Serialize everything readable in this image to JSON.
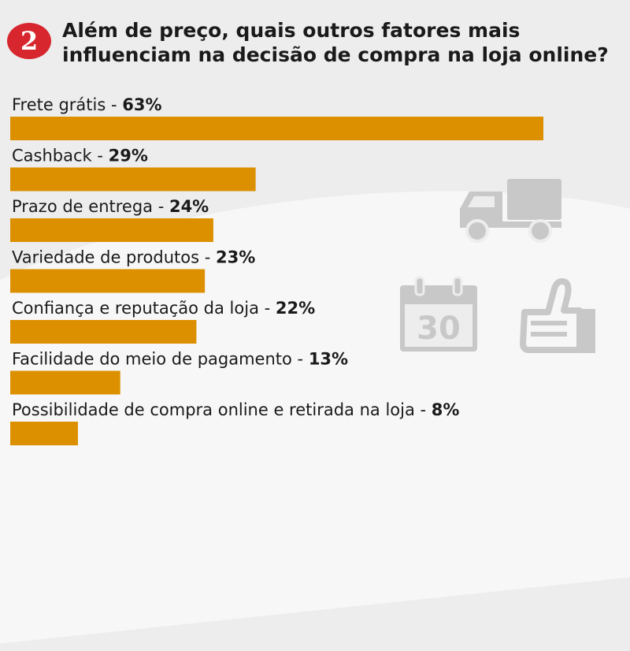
{
  "header": {
    "badge": "2",
    "title_line1": "Além de preço, quais outros fatores mais",
    "title_line2": "influenciam na decisão de compra na loja online?"
  },
  "colors": {
    "bar": "#dc9000",
    "badge": "#d7262e",
    "icons": "#c8c8c8"
  },
  "icons": [
    "truck-icon",
    "calendar-icon",
    "thumbs-up-icon"
  ],
  "calendar_number": "30",
  "chart_data": {
    "type": "bar",
    "orientation": "horizontal",
    "title": "Além de preço, quais outros fatores mais influenciam na decisão de compra na loja online?",
    "categories": [
      "Frete grátis",
      "Cashback",
      "Prazo de entrega",
      "Variedade de produtos",
      "Confiança e reputação da loja",
      "Facilidade do meio de pagamento",
      "Possibilidade de compra online e retirada na loja"
    ],
    "values": [
      63,
      29,
      24,
      23,
      22,
      13,
      8
    ],
    "value_labels": [
      "63%",
      "29%",
      "24%",
      "23%",
      "22%",
      "13%",
      "8%"
    ],
    "unit": "%",
    "grid": false,
    "legend": "none"
  }
}
